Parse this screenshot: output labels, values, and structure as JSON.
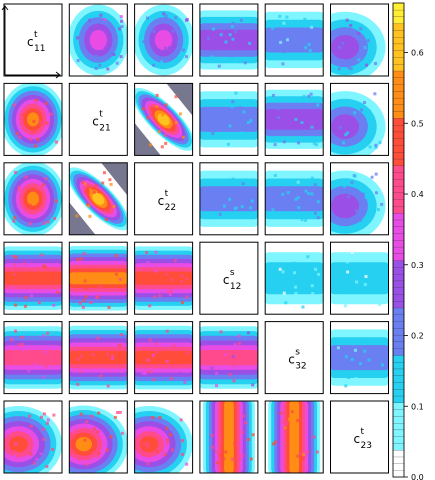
{
  "chart_data": {
    "type": "heatmap",
    "title": "",
    "xlabel": "",
    "ylabel": "",
    "grid_rows": 6,
    "grid_cols": 6,
    "diagonal_labels": [
      {
        "base": "c",
        "sup": "t",
        "sub": "11"
      },
      {
        "base": "c",
        "sup": "t",
        "sub": "21"
      },
      {
        "base": "c",
        "sup": "t",
        "sub": "22"
      },
      {
        "base": "c",
        "sup": "s",
        "sub": "12"
      },
      {
        "base": "c",
        "sup": "s",
        "sub": "32"
      },
      {
        "base": "c",
        "sup": "t",
        "sub": "23"
      }
    ],
    "colorbar": {
      "ticks": [
        "0.0",
        "0.1",
        "0.2",
        "0.3",
        "0.4",
        "0.5",
        "0.6"
      ],
      "min": 0.0,
      "max": 0.67,
      "colors": [
        "#ffffff",
        "#7ff6ff",
        "#25d0f0",
        "#6a7ff2",
        "#9a4fe6",
        "#e84ce4",
        "#ff4a8c",
        "#ff4d3a",
        "#ff8c14",
        "#ffc21e",
        "#ffee33"
      ]
    },
    "panel_levels": [
      [
        null,
        0.36,
        0.33,
        0.27,
        0.24,
        0.31
      ],
      [
        0.55,
        null,
        0.6,
        0.25,
        0.28,
        0.28
      ],
      [
        0.55,
        0.6,
        null,
        0.24,
        0.24,
        0.28
      ],
      [
        0.52,
        0.55,
        0.5,
        null,
        0.18,
        0.18
      ],
      [
        0.45,
        0.52,
        0.47,
        0.44,
        null,
        0.22
      ],
      [
        0.5,
        0.55,
        0.52,
        0.54,
        0.56,
        null
      ]
    ],
    "panel_patterns": [
      [
        null,
        "blob",
        "blob",
        "band",
        "band",
        "corner"
      ],
      [
        "blob",
        null,
        "diag",
        "band",
        "band",
        "corner"
      ],
      [
        "blob",
        "diag",
        null,
        "band",
        "band",
        "corner"
      ],
      [
        "band",
        "band",
        "band",
        null,
        "band",
        "band"
      ],
      [
        "band",
        "band",
        "band",
        "band",
        null,
        "band"
      ],
      [
        "corner",
        "corner",
        "corner",
        "vband",
        "vband",
        null
      ]
    ]
  }
}
